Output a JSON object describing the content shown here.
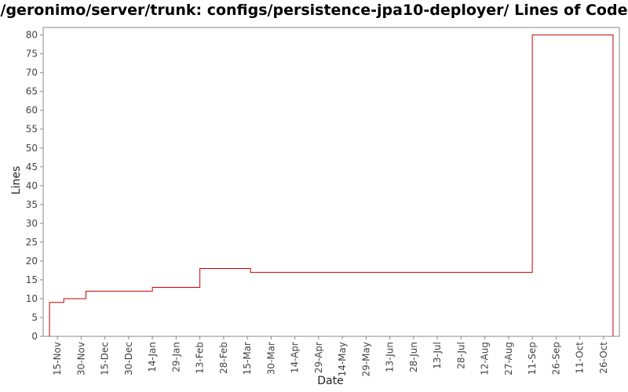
{
  "chart_data": {
    "type": "line",
    "title": "/geronimo/server/trunk: configs/persistence-jpa10-deployer/ Lines of Code",
    "xlabel": "Date",
    "ylabel": "Lines",
    "ylim": [
      0,
      82
    ],
    "yticks": [
      0,
      5,
      10,
      15,
      20,
      25,
      30,
      35,
      40,
      45,
      50,
      55,
      60,
      65,
      70,
      75,
      80
    ],
    "xlim": [
      "2006-11-06",
      "2007-11-05"
    ],
    "xticks": [
      {
        "date": "2006-11-15",
        "label": "15-Nov"
      },
      {
        "date": "2006-11-30",
        "label": "30-Nov"
      },
      {
        "date": "2006-12-15",
        "label": "15-Dec"
      },
      {
        "date": "2006-12-30",
        "label": "30-Dec"
      },
      {
        "date": "2007-01-14",
        "label": "14-Jan"
      },
      {
        "date": "2007-01-29",
        "label": "29-Jan"
      },
      {
        "date": "2007-02-13",
        "label": "13-Feb"
      },
      {
        "date": "2007-02-28",
        "label": "28-Feb"
      },
      {
        "date": "2007-03-15",
        "label": "15-Mar"
      },
      {
        "date": "2007-03-30",
        "label": "30-Mar"
      },
      {
        "date": "2007-04-14",
        "label": "14-Apr"
      },
      {
        "date": "2007-04-29",
        "label": "29-Apr"
      },
      {
        "date": "2007-05-14",
        "label": "14-May"
      },
      {
        "date": "2007-05-29",
        "label": "29-May"
      },
      {
        "date": "2007-06-13",
        "label": "13-Jun"
      },
      {
        "date": "2007-06-28",
        "label": "28-Jun"
      },
      {
        "date": "2007-07-13",
        "label": "13-Jul"
      },
      {
        "date": "2007-07-28",
        "label": "28-Jul"
      },
      {
        "date": "2007-08-12",
        "label": "12-Aug"
      },
      {
        "date": "2007-08-27",
        "label": "27-Aug"
      },
      {
        "date": "2007-09-11",
        "label": "11-Sep"
      },
      {
        "date": "2007-09-26",
        "label": "26-Sep"
      },
      {
        "date": "2007-10-11",
        "label": "11-Oct"
      },
      {
        "date": "2007-10-26",
        "label": "26-Oct"
      }
    ],
    "step": true,
    "series": [
      {
        "color": "#cc0000",
        "points": [
          {
            "x": "2006-11-10",
            "y": 0
          },
          {
            "x": "2006-11-10",
            "y": 9
          },
          {
            "x": "2006-11-19",
            "y": 10
          },
          {
            "x": "2006-12-03",
            "y": 12
          },
          {
            "x": "2007-01-14",
            "y": 13
          },
          {
            "x": "2007-02-13",
            "y": 18
          },
          {
            "x": "2007-03-17",
            "y": 17
          },
          {
            "x": "2007-09-11",
            "y": 80
          },
          {
            "x": "2007-11-01",
            "y": 80
          },
          {
            "x": "2007-11-01",
            "y": 0
          }
        ]
      }
    ],
    "grid": false,
    "legend": "none"
  }
}
